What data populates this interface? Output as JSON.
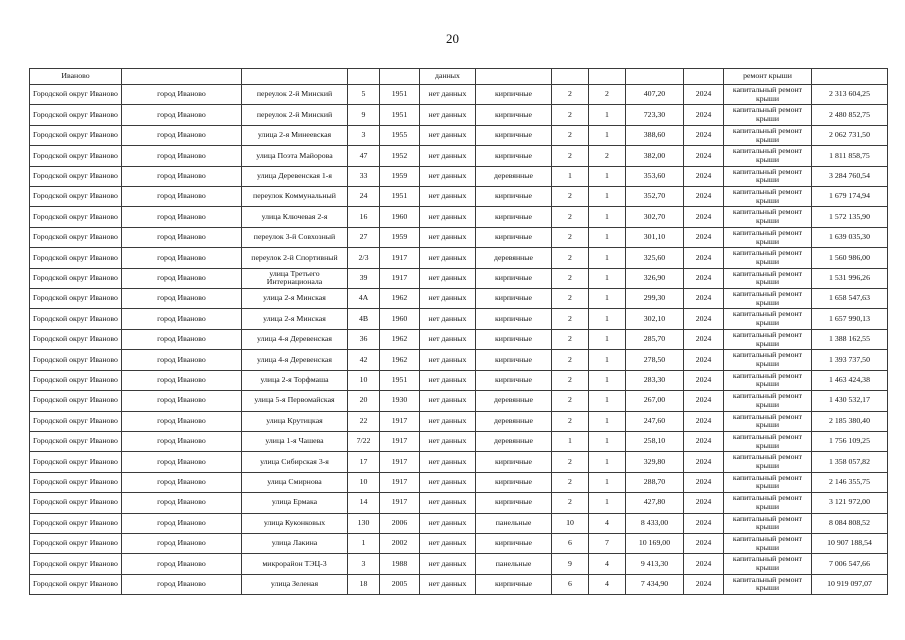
{
  "page": {
    "number": "20"
  },
  "table": {
    "continuation_row": {
      "district": "Иваново",
      "city": "",
      "street": "",
      "house": "",
      "year_built": "",
      "no_data": "данных",
      "walls": "",
      "floors": "",
      "entrances": "",
      "area": "",
      "repair_year": "",
      "repair_type": "ремонт крыши",
      "cost": ""
    },
    "rows": [
      {
        "district": "Городской округ Иваново",
        "city": "город Иваново",
        "street": "переулок 2-й Минский",
        "house": "5",
        "year_built": "1951",
        "no_data": "нет данных",
        "walls": "кирпичные",
        "floors": "2",
        "entrances": "2",
        "area": "407,20",
        "repair_year": "2024",
        "repair_type": "капитальный ремонт крыши",
        "cost": "2 313 604,25"
      },
      {
        "district": "Городской округ Иваново",
        "city": "город Иваново",
        "street": "переулок 2-й Минский",
        "house": "9",
        "year_built": "1951",
        "no_data": "нет данных",
        "walls": "кирпичные",
        "floors": "2",
        "entrances": "1",
        "area": "723,30",
        "repair_year": "2024",
        "repair_type": "капитальный ремонт крыши",
        "cost": "2 480 852,75"
      },
      {
        "district": "Городской округ Иваново",
        "city": "город Иваново",
        "street": "улица 2-я Минеевская",
        "house": "3",
        "year_built": "1955",
        "no_data": "нет данных",
        "walls": "кирпичные",
        "floors": "2",
        "entrances": "1",
        "area": "388,60",
        "repair_year": "2024",
        "repair_type": "капитальный ремонт крыши",
        "cost": "2 062 731,50"
      },
      {
        "district": "Городской округ Иваново",
        "city": "город Иваново",
        "street": "улица Поэта Майорова",
        "house": "47",
        "year_built": "1952",
        "no_data": "нет данных",
        "walls": "кирпичные",
        "floors": "2",
        "entrances": "2",
        "area": "382,00",
        "repair_year": "2024",
        "repair_type": "капитальный ремонт крыши",
        "cost": "1 811 858,75"
      },
      {
        "district": "Городской округ Иваново",
        "city": "город Иваново",
        "street": "улица Деревенская 1-я",
        "house": "33",
        "year_built": "1959",
        "no_data": "нет данных",
        "walls": "деревянные",
        "floors": "1",
        "entrances": "1",
        "area": "353,60",
        "repair_year": "2024",
        "repair_type": "капитальный ремонт крыши",
        "cost": "3 284 760,54"
      },
      {
        "district": "Городской округ Иваново",
        "city": "город Иваново",
        "street": "переулок Коммунальный",
        "house": "24",
        "year_built": "1951",
        "no_data": "нет данных",
        "walls": "кирпичные",
        "floors": "2",
        "entrances": "1",
        "area": "352,70",
        "repair_year": "2024",
        "repair_type": "капитальный ремонт крыши",
        "cost": "1 679 174,94"
      },
      {
        "district": "Городской округ Иваново",
        "city": "город Иваново",
        "street": "улица Ключевая 2-я",
        "house": "16",
        "year_built": "1960",
        "no_data": "нет данных",
        "walls": "кирпичные",
        "floors": "2",
        "entrances": "1",
        "area": "302,70",
        "repair_year": "2024",
        "repair_type": "капитальный ремонт крыши",
        "cost": "1 572 135,90"
      },
      {
        "district": "Городской округ Иваново",
        "city": "город Иваново",
        "street": "переулок 3-й Совхозный",
        "house": "27",
        "year_built": "1959",
        "no_data": "нет данных",
        "walls": "кирпичные",
        "floors": "2",
        "entrances": "1",
        "area": "301,10",
        "repair_year": "2024",
        "repair_type": "капитальный ремонт крыши",
        "cost": "1 639 035,30"
      },
      {
        "district": "Городской округ Иваново",
        "city": "город Иваново",
        "street": "переулок 2-й Спортивный",
        "house": "2/3",
        "year_built": "1917",
        "no_data": "нет данных",
        "walls": "деревянные",
        "floors": "2",
        "entrances": "1",
        "area": "325,60",
        "repair_year": "2024",
        "repair_type": "капитальный ремонт крыши",
        "cost": "1 560 986,00"
      },
      {
        "district": "Городской округ Иваново",
        "city": "город Иваново",
        "street": "улица Третьего Интернационала",
        "house": "39",
        "year_built": "1917",
        "no_data": "нет данных",
        "walls": "кирпичные",
        "floors": "2",
        "entrances": "1",
        "area": "326,90",
        "repair_year": "2024",
        "repair_type": "капитальный ремонт крыши",
        "cost": "1 531 996,26"
      },
      {
        "district": "Городской округ Иваново",
        "city": "город Иваново",
        "street": "улица 2-я Минская",
        "house": "4А",
        "year_built": "1962",
        "no_data": "нет данных",
        "walls": "кирпичные",
        "floors": "2",
        "entrances": "1",
        "area": "299,30",
        "repair_year": "2024",
        "repair_type": "капитальный ремонт крыши",
        "cost": "1 658 547,63"
      },
      {
        "district": "Городской округ Иваново",
        "city": "город Иваново",
        "street": "улица 2-я Минская",
        "house": "4В",
        "year_built": "1960",
        "no_data": "нет данных",
        "walls": "кирпичные",
        "floors": "2",
        "entrances": "1",
        "area": "302,10",
        "repair_year": "2024",
        "repair_type": "капитальный ремонт крыши",
        "cost": "1 657 990,13"
      },
      {
        "district": "Городской округ Иваново",
        "city": "город Иваново",
        "street": "улица 4-я Деревенская",
        "house": "36",
        "year_built": "1962",
        "no_data": "нет данных",
        "walls": "кирпичные",
        "floors": "2",
        "entrances": "1",
        "area": "285,70",
        "repair_year": "2024",
        "repair_type": "капитальный ремонт крыши",
        "cost": "1 388 162,55"
      },
      {
        "district": "Городской округ Иваново",
        "city": "город Иваново",
        "street": "улица 4-я Деревенская",
        "house": "42",
        "year_built": "1962",
        "no_data": "нет данных",
        "walls": "кирпичные",
        "floors": "2",
        "entrances": "1",
        "area": "278,50",
        "repair_year": "2024",
        "repair_type": "капитальный ремонт крыши",
        "cost": "1 393 737,50"
      },
      {
        "district": "Городской округ Иваново",
        "city": "город Иваново",
        "street": "улица 2-я Торфмаша",
        "house": "10",
        "year_built": "1951",
        "no_data": "нет данных",
        "walls": "кирпичные",
        "floors": "2",
        "entrances": "1",
        "area": "283,30",
        "repair_year": "2024",
        "repair_type": "капитальный ремонт крыши",
        "cost": "1 463 424,38"
      },
      {
        "district": "Городской округ Иваново",
        "city": "город Иваново",
        "street": "улица 5-я Первомайская",
        "house": "20",
        "year_built": "1930",
        "no_data": "нет данных",
        "walls": "деревянные",
        "floors": "2",
        "entrances": "1",
        "area": "267,00",
        "repair_year": "2024",
        "repair_type": "капитальный ремонт крыши",
        "cost": "1 430 532,17"
      },
      {
        "district": "Городской округ Иваново",
        "city": "город Иваново",
        "street": "улица Крутицкая",
        "house": "22",
        "year_built": "1917",
        "no_data": "нет данных",
        "walls": "деревянные",
        "floors": "2",
        "entrances": "1",
        "area": "247,60",
        "repair_year": "2024",
        "repair_type": "капитальный ремонт крыши",
        "cost": "2 185 380,40"
      },
      {
        "district": "Городской округ Иваново",
        "city": "город Иваново",
        "street": "улица 1-я Чашева",
        "house": "7/22",
        "year_built": "1917",
        "no_data": "нет данных",
        "walls": "деревянные",
        "floors": "1",
        "entrances": "1",
        "area": "258,10",
        "repair_year": "2024",
        "repair_type": "капитальный ремонт крыши",
        "cost": "1 756 109,25"
      },
      {
        "district": "Городской округ Иваново",
        "city": "город Иваново",
        "street": "улица Сибирская 3-я",
        "house": "17",
        "year_built": "1917",
        "no_data": "нет данных",
        "walls": "кирпичные",
        "floors": "2",
        "entrances": "1",
        "area": "329,80",
        "repair_year": "2024",
        "repair_type": "капитальный ремонт крыши",
        "cost": "1 358 057,82"
      },
      {
        "district": "Городской округ Иваново",
        "city": "город Иваново",
        "street": "улица Смирнова",
        "house": "10",
        "year_built": "1917",
        "no_data": "нет данных",
        "walls": "кирпичные",
        "floors": "2",
        "entrances": "1",
        "area": "288,70",
        "repair_year": "2024",
        "repair_type": "капитальный ремонт крыши",
        "cost": "2 146 355,75"
      },
      {
        "district": "Городской округ Иваново",
        "city": "город Иваново",
        "street": "улица Ермака",
        "house": "14",
        "year_built": "1917",
        "no_data": "нет данных",
        "walls": "кирпичные",
        "floors": "2",
        "entrances": "1",
        "area": "427,80",
        "repair_year": "2024",
        "repair_type": "капитальный ремонт крыши",
        "cost": "3 121 972,00"
      },
      {
        "district": "Городской округ Иваново",
        "city": "город Иваново",
        "street": "улица Куконковых",
        "house": "130",
        "year_built": "2006",
        "no_data": "нет данных",
        "walls": "панельные",
        "floors": "10",
        "entrances": "4",
        "area": "8 433,00",
        "repair_year": "2024",
        "repair_type": "капитальный ремонт крыши",
        "cost": "8 084 808,52"
      },
      {
        "district": "Городской округ Иваново",
        "city": "город Иваново",
        "street": "улица Лакина",
        "house": "1",
        "year_built": "2002",
        "no_data": "нет данных",
        "walls": "кирпичные",
        "floors": "6",
        "entrances": "7",
        "area": "10 169,00",
        "repair_year": "2024",
        "repair_type": "капитальный ремонт крыши",
        "cost": "10 907 188,54"
      },
      {
        "district": "Городской округ Иваново",
        "city": "город Иваново",
        "street": "микрорайон ТЭЦ-3",
        "house": "3",
        "year_built": "1988",
        "no_data": "нет данных",
        "walls": "панельные",
        "floors": "9",
        "entrances": "4",
        "area": "9 413,30",
        "repair_year": "2024",
        "repair_type": "капитальный ремонт крыши",
        "cost": "7 006 547,66"
      },
      {
        "district": "Городской округ Иваново",
        "city": "город Иваново",
        "street": "улица Зеленая",
        "house": "18",
        "year_built": "2005",
        "no_data": "нет данных",
        "walls": "кирпичные",
        "floors": "6",
        "entrances": "4",
        "area": "7 434,90",
        "repair_year": "2024",
        "repair_type": "капитальный ремонт крыши",
        "cost": "10 919 097,07"
      }
    ]
  }
}
